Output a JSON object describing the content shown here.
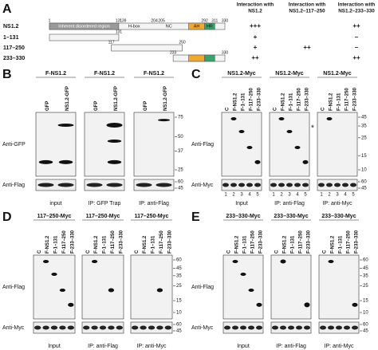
{
  "panel_a": {
    "label": "A",
    "constructs": [
      {
        "name": "NS1.2",
        "positions": [
          1,
          131,
          139,
          204,
          205,
          292,
          311,
          330
        ]
      },
      {
        "name": "1–131",
        "positions": [
          131
        ]
      },
      {
        "name": "117–250",
        "positions": [
          117,
          250
        ]
      },
      {
        "name": "233–330",
        "positions": [
          233,
          330
        ]
      }
    ],
    "domains": [
      "Inherent disordered region",
      "H-box",
      "NC",
      "AH",
      "HR"
    ],
    "table": {
      "headers": [
        [
          "Interaction with",
          "NS1.2"
        ],
        [
          "Interaction with",
          "NS1.2–117–250"
        ],
        [
          "Interaction with",
          "NS1.2–233–330"
        ]
      ],
      "rows": [
        [
          "+++",
          null,
          "++"
        ],
        [
          "+",
          null,
          "–"
        ],
        [
          "+",
          "++",
          "–"
        ],
        [
          "++",
          null,
          "++"
        ]
      ]
    }
  },
  "panel_b": {
    "label": "B",
    "headers": [
      "F-NS1.2",
      "F-NS1.2",
      "F-NS1.2"
    ],
    "lanes": [
      [
        "GFP",
        "NS1.2-GFP"
      ],
      [
        "GFP",
        "NS1.2-GFP"
      ],
      [
        "GFP",
        "NS1.2-GFP"
      ]
    ],
    "row_labels": [
      "Anti-GFP",
      "Anti-Flag"
    ],
    "mw_top": [
      75,
      50,
      37,
      25
    ],
    "mw_bottom": [
      60,
      45
    ],
    "captions": [
      "input",
      "IP: GFP Trap",
      "IP: anti-Flag"
    ]
  },
  "panel_c": {
    "label": "C",
    "headers": [
      "NS1.2-Myc",
      "NS1.2-Myc",
      "NS1.2-Myc"
    ],
    "lanes": [
      [
        "C",
        "F-NS1.2",
        "F-1–131",
        "F-117–250",
        "F-233–330"
      ],
      [
        "C",
        "F-NS1.2",
        "F-1–131",
        "F-117–250",
        "F-233–330"
      ],
      [
        "C",
        "F-NS1.2",
        "F-1–131",
        "F-117–250",
        "F-233–330"
      ]
    ],
    "row_labels": [
      "Anti-Flag",
      "Anti-Myc"
    ],
    "marker": "*",
    "mw_top": [
      45,
      35,
      25,
      15,
      10
    ],
    "mw_bottom": [
      60,
      45
    ],
    "lane_numbers": [
      [
        1,
        2,
        3,
        4,
        5
      ],
      [
        1,
        2,
        3,
        4,
        5
      ],
      [
        1,
        2,
        3,
        4,
        5
      ]
    ],
    "captions": [
      "Input",
      "IP: anti-Flag",
      "IP: anti-Myc"
    ]
  },
  "panel_d": {
    "label": "D",
    "headers": [
      "117–250-Myc",
      "117–250-Myc",
      "117–250-Myc"
    ],
    "lanes": [
      [
        "C",
        "F-NS1.2",
        "F-1–131",
        "F-117–250",
        "F-233–330"
      ],
      [
        "C",
        "F-NS1.2",
        "F-1–131",
        "F-117–250",
        "F-233–330"
      ],
      [
        "C",
        "F-NS1.2",
        "F-1–131",
        "F-117–250",
        "F-233–330"
      ]
    ],
    "row_labels": [
      "Anti-Flag",
      "Anti-Myc"
    ],
    "mw_top": [
      60,
      45,
      35,
      25,
      15,
      10
    ],
    "mw_bottom": [
      60,
      45
    ],
    "captions": [
      "Input",
      "IP: anti-Flag",
      "IP: anti-Myc"
    ]
  },
  "panel_e": {
    "label": "E",
    "headers": [
      "233–330-Myc",
      "233–330-Myc",
      "233–330-Myc"
    ],
    "lanes": [
      [
        "C",
        "F-NS1.2",
        "F-1–131",
        "F-117–250",
        "F-233–330"
      ],
      [
        "C",
        "F-NS1.2",
        "F-1–131",
        "F-117–250",
        "F-233–330"
      ],
      [
        "C",
        "F-NS1.2",
        "F-1–131",
        "F-117–250",
        "F-233–330"
      ]
    ],
    "row_labels": [
      "Anti-Flag",
      "Anti-Myc"
    ],
    "mw_top": [
      60,
      45,
      35,
      25,
      15,
      10
    ],
    "mw_bottom": [
      60,
      45
    ],
    "captions": [
      "Input",
      "IP: anti-Flag",
      "IP: anti-Myc"
    ]
  }
}
